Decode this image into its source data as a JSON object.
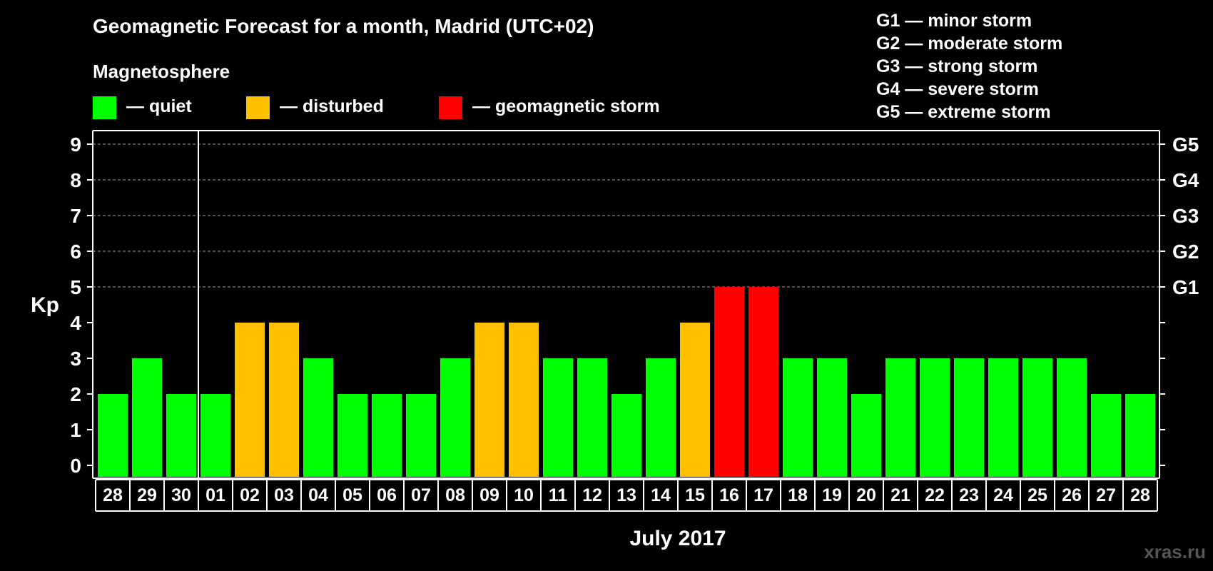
{
  "chart_data": {
    "type": "bar",
    "title": "Geomagnetic Forecast for a month, Madrid (UTC+02)",
    "legend_title": "Magnetosphere",
    "legend": [
      {
        "key": "quiet",
        "label": "— quiet",
        "color": "#00ff00"
      },
      {
        "key": "disturbed",
        "label": "— disturbed",
        "color": "#ffc000"
      },
      {
        "key": "storm",
        "label": "— geomagnetic storm",
        "color": "#ff0000"
      }
    ],
    "storm_levels": [
      "G1 — minor storm",
      "G2 — moderate storm",
      "G3 — strong storm",
      "G4 — severe storm",
      "G5 — extreme storm"
    ],
    "ylabel": "Kp",
    "xlabel": "July 2017",
    "ylim": [
      0,
      9
    ],
    "y_ticks": [
      0,
      1,
      2,
      3,
      4,
      5,
      6,
      7,
      8,
      9
    ],
    "right_ticks": [
      {
        "value": 5,
        "label": "G1"
      },
      {
        "value": 6,
        "label": "G2"
      },
      {
        "value": 7,
        "label": "G3"
      },
      {
        "value": 8,
        "label": "G4"
      },
      {
        "value": 9,
        "label": "G5"
      }
    ],
    "categories": [
      "28",
      "29",
      "30",
      "01",
      "02",
      "03",
      "04",
      "05",
      "06",
      "07",
      "08",
      "09",
      "10",
      "11",
      "12",
      "13",
      "14",
      "15",
      "16",
      "17",
      "18",
      "19",
      "20",
      "21",
      "22",
      "23",
      "24",
      "25",
      "26",
      "27",
      "28"
    ],
    "values": [
      2,
      3,
      2,
      2,
      4,
      4,
      3,
      2,
      2,
      2,
      3,
      4,
      4,
      3,
      3,
      2,
      3,
      4,
      5,
      5,
      3,
      3,
      2,
      3,
      3,
      3,
      3,
      3,
      3,
      2,
      2
    ],
    "month_divider_after_index": 2
  },
  "watermark": "xras.ru"
}
